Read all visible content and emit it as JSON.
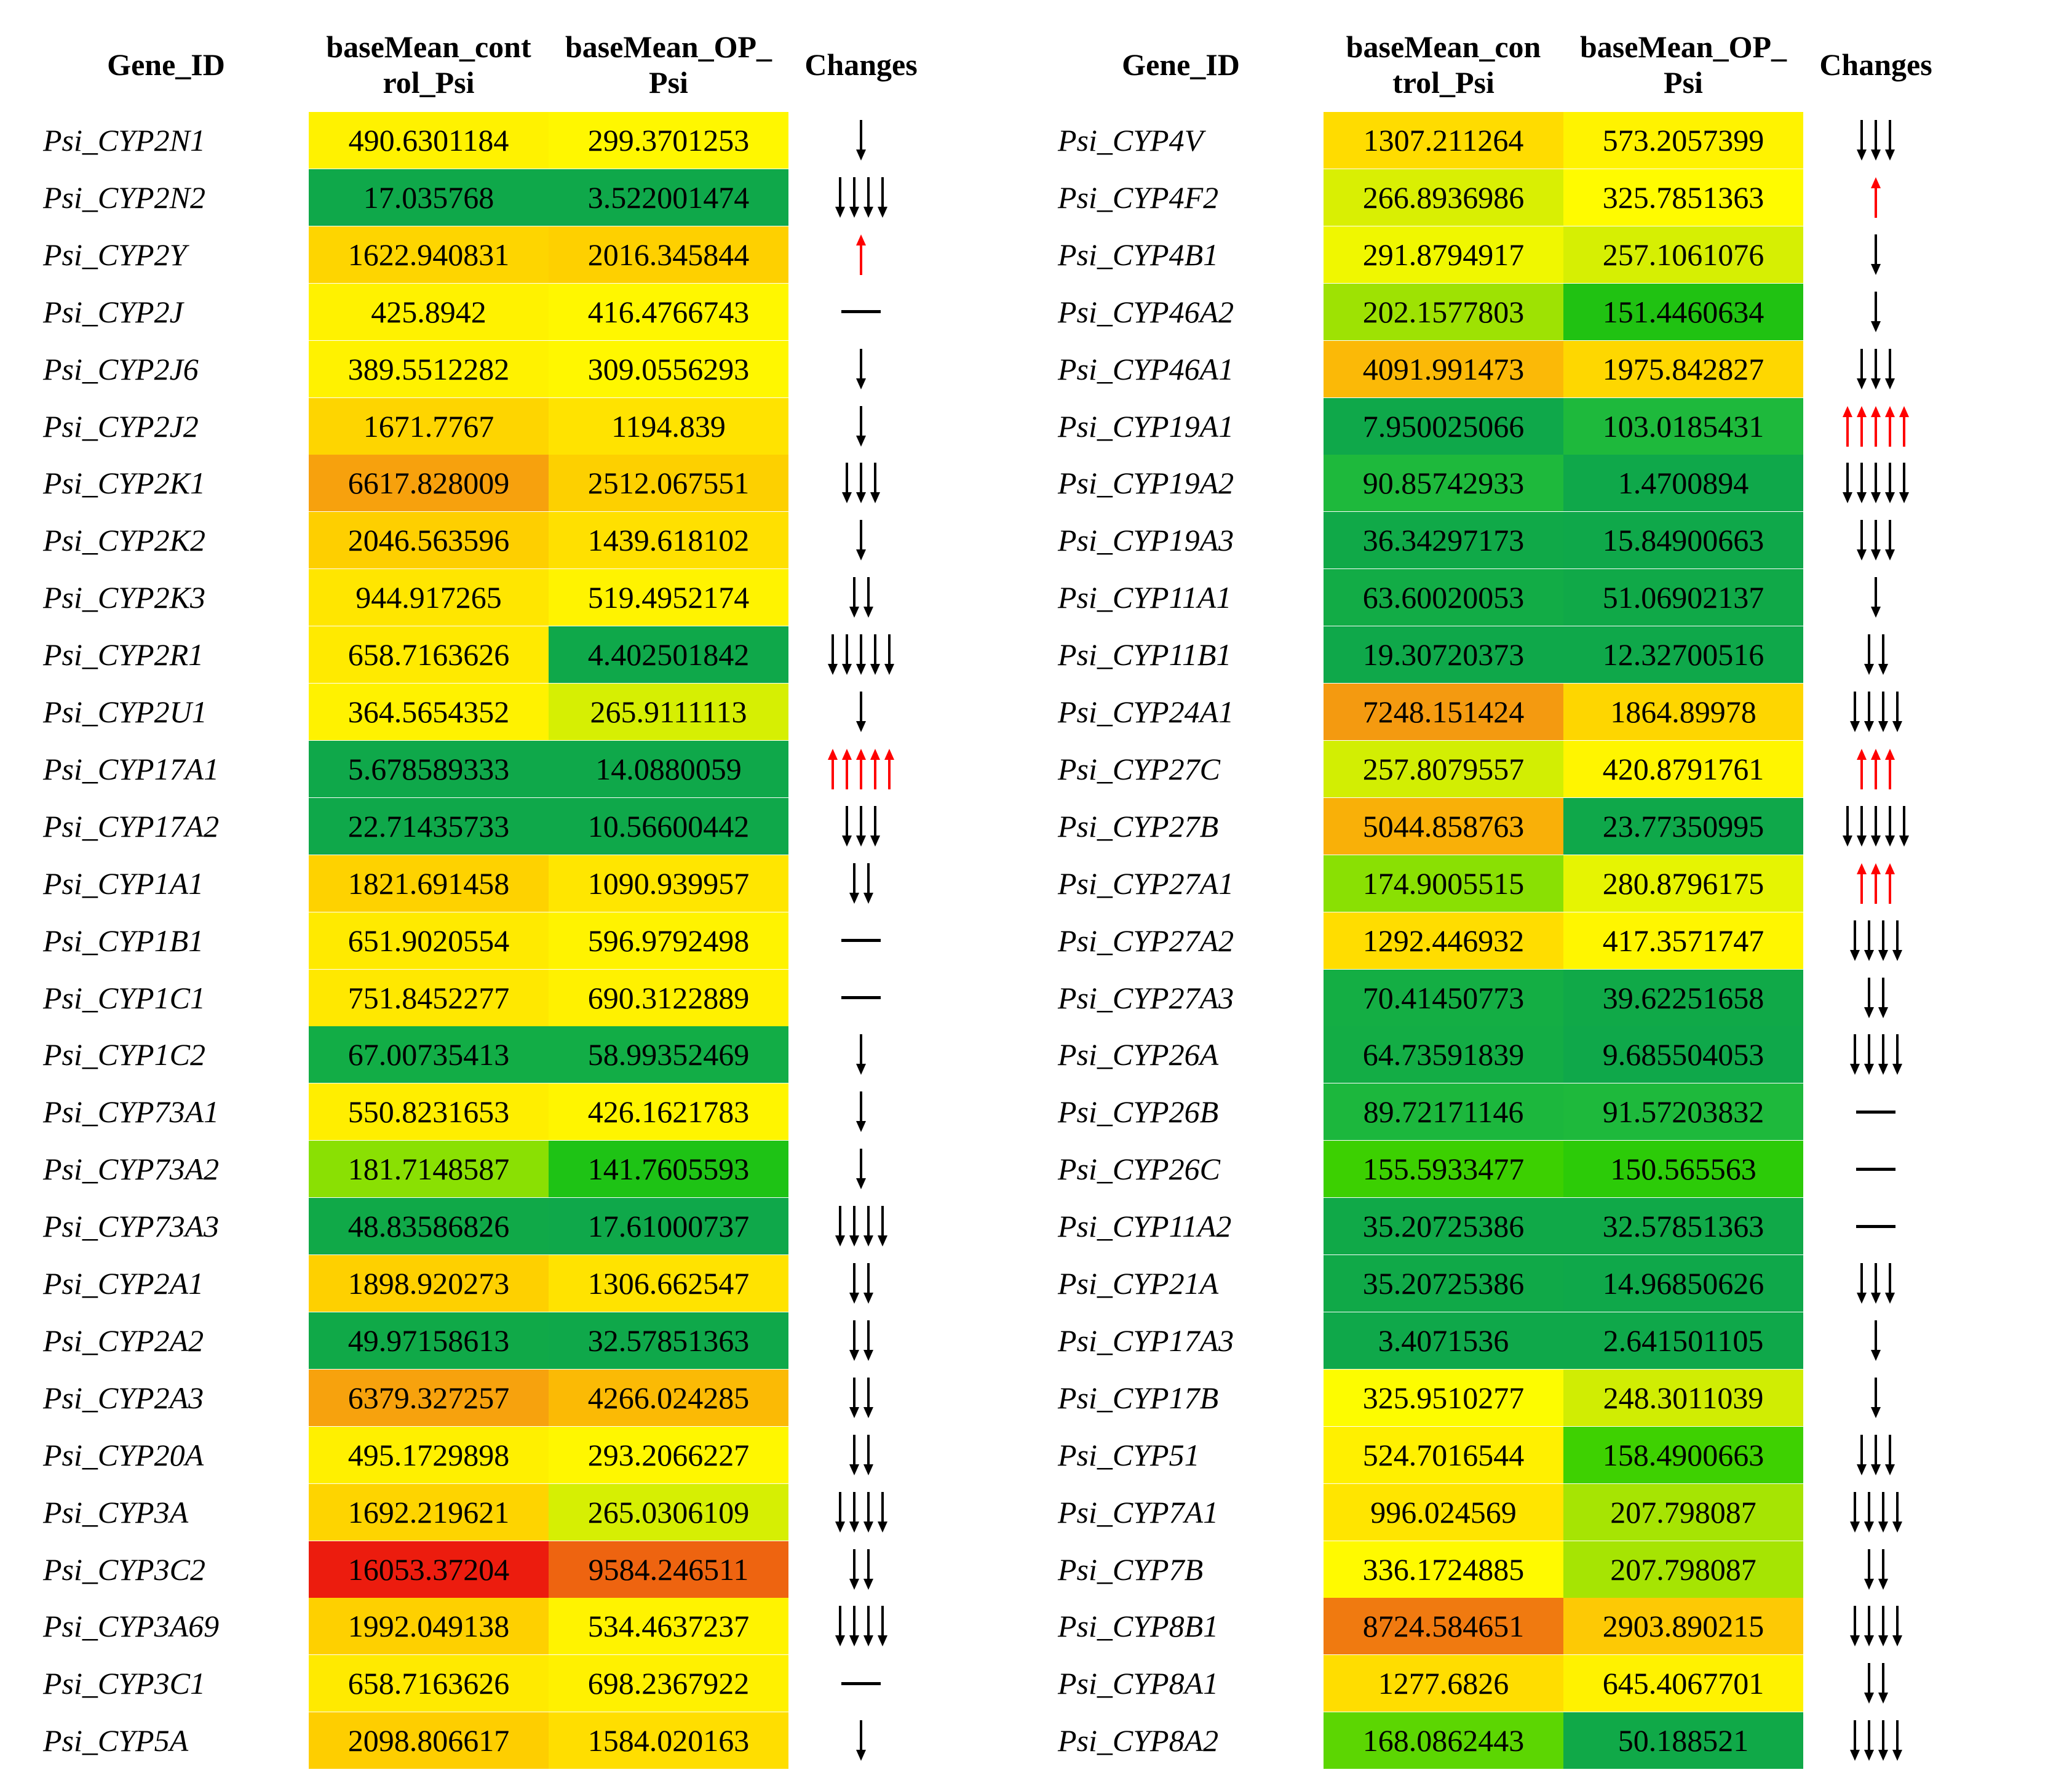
{
  "headers": {
    "gene": "Gene_ID",
    "control_left": [
      "baseMean_cont",
      "rol_Psi"
    ],
    "op_left": [
      "baseMean_OP_",
      "Psi"
    ],
    "control_right": [
      "baseMean_con",
      "trol_Psi"
    ],
    "op_right": [
      "baseMean_OP_",
      "Psi"
    ],
    "changes": "Changes"
  },
  "colors": {
    "red": "#ec1c0e",
    "orange_red": "#ee5b10",
    "orange": "#f7a10d",
    "orange_yellow": "#fdcb05",
    "yellow": "#ffe800",
    "pale_yellow": "#fffd00",
    "yellow_green": "#d6ef03",
    "light_green": "#8ae003",
    "green": "#3cd001",
    "mid_green": "#1eb93c",
    "dark_green": "#0fa84a",
    "arrow_up": "#ff0000",
    "arrow_down": "#000000"
  },
  "left_rows": [
    {
      "gene": "Psi_CYP2N1",
      "control": "490.6301184",
      "op": "299.3701253",
      "control_color": "#fff200",
      "op_color": "#fff700",
      "change": {
        "dir": "down",
        "count": 1
      }
    },
    {
      "gene": "Psi_CYP2N2",
      "control": "17.035768",
      "op": "3.522001474",
      "control_color": "#0fa84a",
      "op_color": "#0fa84a",
      "change": {
        "dir": "down",
        "count": 4
      }
    },
    {
      "gene": "Psi_CYP2Y",
      "control": "1622.940831",
      "op": "2016.345844",
      "control_color": "#fed500",
      "op_color": "#fed000",
      "change": {
        "dir": "up",
        "count": 1
      }
    },
    {
      "gene": "Psi_CYP2J",
      "control": "425.8942",
      "op": "416.4766743",
      "control_color": "#fff200",
      "op_color": "#fff700",
      "change": {
        "dir": "none",
        "count": 0
      }
    },
    {
      "gene": "Psi_CYP2J6",
      "control": "389.5512282",
      "op": "309.0556293",
      "control_color": "#fff200",
      "op_color": "#fff700",
      "change": {
        "dir": "down",
        "count": 1
      }
    },
    {
      "gene": "Psi_CYP2J2",
      "control": "1671.7767",
      "op": "1194.839",
      "control_color": "#fed500",
      "op_color": "#ffe300",
      "change": {
        "dir": "down",
        "count": 1
      }
    },
    {
      "gene": "Psi_CYP2K1",
      "control": "6617.828009",
      "op": "2512.067551",
      "control_color": "#f7a10d",
      "op_color": "#fdd000",
      "change": {
        "dir": "down",
        "count": 3
      }
    },
    {
      "gene": "Psi_CYP2K2",
      "control": "2046.563596",
      "op": "1439.618102",
      "control_color": "#fecf00",
      "op_color": "#ffe000",
      "change": {
        "dir": "down",
        "count": 1
      }
    },
    {
      "gene": "Psi_CYP2K3",
      "control": "944.917265",
      "op": "519.4952174",
      "control_color": "#ffe600",
      "op_color": "#fff300",
      "change": {
        "dir": "down",
        "count": 2
      }
    },
    {
      "gene": "Psi_CYP2R1",
      "control": "658.7163626",
      "op": "4.402501842",
      "control_color": "#ffea00",
      "op_color": "#0fa84a",
      "change": {
        "dir": "down",
        "count": 5
      }
    },
    {
      "gene": "Psi_CYP2U1",
      "control": "364.5654352",
      "op": "265.9111113",
      "control_color": "#fff200",
      "op_color": "#d6ef03",
      "change": {
        "dir": "down",
        "count": 1
      }
    },
    {
      "gene": "Psi_CYP17A1",
      "control": "5.678589333",
      "op": "14.0880059",
      "control_color": "#0fa84a",
      "op_color": "#0fa84a",
      "change": {
        "dir": "up",
        "count": 5
      }
    },
    {
      "gene": "Psi_CYP17A2",
      "control": "22.71435733",
      "op": "10.56600442",
      "control_color": "#0fa84a",
      "op_color": "#0fa84a",
      "change": {
        "dir": "down",
        "count": 3
      }
    },
    {
      "gene": "Psi_CYP1A1",
      "control": "1821.691458",
      "op": "1090.939957",
      "control_color": "#fed200",
      "op_color": "#ffe600",
      "change": {
        "dir": "down",
        "count": 2
      }
    },
    {
      "gene": "Psi_CYP1B1",
      "control": "651.9020554",
      "op": "596.9792498",
      "control_color": "#ffea00",
      "op_color": "#fff300",
      "change": {
        "dir": "none",
        "count": 0
      }
    },
    {
      "gene": "Psi_CYP1C1",
      "control": "751.8452277",
      "op": "690.3122889",
      "control_color": "#ffe800",
      "op_color": "#fff100",
      "change": {
        "dir": "none",
        "count": 0
      }
    },
    {
      "gene": "Psi_CYP1C2",
      "control": "67.00735413",
      "op": "58.99352469",
      "control_color": "#12ad46",
      "op_color": "#12ad46",
      "change": {
        "dir": "down",
        "count": 1
      }
    },
    {
      "gene": "Psi_CYP73A1",
      "control": "550.8231653",
      "op": "426.1621783",
      "control_color": "#ffee00",
      "op_color": "#fff500",
      "change": {
        "dir": "down",
        "count": 1
      }
    },
    {
      "gene": "Psi_CYP73A2",
      "control": "181.7148587",
      "op": "141.7605593",
      "control_color": "#8ae003",
      "op_color": "#1ec315",
      "change": {
        "dir": "down",
        "count": 1
      }
    },
    {
      "gene": "Psi_CYP73A3",
      "control": "48.83586826",
      "op": "17.61000737",
      "control_color": "#10a948",
      "op_color": "#0fa84a",
      "change": {
        "dir": "down",
        "count": 4
      }
    },
    {
      "gene": "Psi_CYP2A1",
      "control": "1898.920273",
      "op": "1306.662547",
      "control_color": "#fed000",
      "op_color": "#ffe300",
      "change": {
        "dir": "down",
        "count": 2
      }
    },
    {
      "gene": "Psi_CYP2A2",
      "control": "49.97158613",
      "op": "32.57851363",
      "control_color": "#10a948",
      "op_color": "#0fa84a",
      "change": {
        "dir": "down",
        "count": 2
      }
    },
    {
      "gene": "Psi_CYP2A3",
      "control": "6379.327257",
      "op": "4266.024285",
      "control_color": "#f7a20d",
      "op_color": "#fbba05",
      "change": {
        "dir": "down",
        "count": 2
      }
    },
    {
      "gene": "Psi_CYP20A",
      "control": "495.1729898",
      "op": "293.2066227",
      "control_color": "#fff000",
      "op_color": "#fff700",
      "change": {
        "dir": "down",
        "count": 2
      }
    },
    {
      "gene": "Psi_CYP3A",
      "control": "1692.219621",
      "op": "265.0306109",
      "control_color": "#fed400",
      "op_color": "#d6ef03",
      "change": {
        "dir": "down",
        "count": 4
      }
    },
    {
      "gene": "Psi_CYP3C2",
      "control": "16053.37204",
      "op": "9584.246511",
      "control_color": "#ec1c0e",
      "op_color": "#ee6410",
      "change": {
        "dir": "down",
        "count": 2
      }
    },
    {
      "gene": "Psi_CYP3A69",
      "control": "1992.049138",
      "op": "534.4637237",
      "control_color": "#fed000",
      "op_color": "#fff300",
      "change": {
        "dir": "down",
        "count": 4
      }
    },
    {
      "gene": "Psi_CYP3C1",
      "control": "658.7163626",
      "op": "698.2367922",
      "control_color": "#ffea00",
      "op_color": "#fff100",
      "change": {
        "dir": "none",
        "count": 0
      }
    },
    {
      "gene": "Psi_CYP5A",
      "control": "2098.806617",
      "op": "1584.020163",
      "control_color": "#fece00",
      "op_color": "#ffde00",
      "change": {
        "dir": "down",
        "count": 1
      }
    }
  ],
  "right_rows": [
    {
      "gene": "Psi_CYP4V",
      "control": "1307.211264",
      "op": "573.2057399",
      "control_color": "#ffdc00",
      "op_color": "#fff300",
      "change": {
        "dir": "down",
        "count": 3
      }
    },
    {
      "gene": "Psi_CYP4F2",
      "control": "266.8936986",
      "op": "325.7851363",
      "control_color": "#d9ef03",
      "op_color": "#fffb00",
      "change": {
        "dir": "up",
        "count": 1
      }
    },
    {
      "gene": "Psi_CYP4B1",
      "control": "291.8794917",
      "op": "257.1061076",
      "control_color": "#f0f700",
      "op_color": "#d6ef03",
      "change": {
        "dir": "down",
        "count": 1
      }
    },
    {
      "gene": "Psi_CYP46A2",
      "control": "202.1577803",
      "op": "151.4460634",
      "control_color": "#9ee203",
      "op_color": "#20c212",
      "change": {
        "dir": "down",
        "count": 1
      }
    },
    {
      "gene": "Psi_CYP46A1",
      "control": "4091.991473",
      "op": "1975.842827",
      "control_color": "#fbb907",
      "op_color": "#fed700",
      "change": {
        "dir": "down",
        "count": 3
      }
    },
    {
      "gene": "Psi_CYP19A1",
      "control": "7.950025066",
      "op": "103.0185431",
      "control_color": "#0fa84a",
      "op_color": "#1eb93c",
      "change": {
        "dir": "up",
        "count": 5
      }
    },
    {
      "gene": "Psi_CYP19A2",
      "control": "90.85742933",
      "op": "1.4700894",
      "control_color": "#1eb93c",
      "op_color": "#0fa84a",
      "change": {
        "dir": "down",
        "count": 5
      }
    },
    {
      "gene": "Psi_CYP19A3",
      "control": "36.34297173",
      "op": "15.84900663",
      "control_color": "#10a948",
      "op_color": "#0fa84a",
      "change": {
        "dir": "down",
        "count": 3
      }
    },
    {
      "gene": "Psi_CYP11A1",
      "control": "63.60020053",
      "op": "51.06902137",
      "control_color": "#12ac46",
      "op_color": "#10a948",
      "change": {
        "dir": "down",
        "count": 1
      }
    },
    {
      "gene": "Psi_CYP11B1",
      "control": "19.30720373",
      "op": "12.32700516",
      "control_color": "#0fa84a",
      "op_color": "#0fa84a",
      "change": {
        "dir": "down",
        "count": 2
      }
    },
    {
      "gene": "Psi_CYP24A1",
      "control": "7248.151424",
      "op": "1864.89978",
      "control_color": "#f49a10",
      "op_color": "#fed600",
      "change": {
        "dir": "down",
        "count": 4
      }
    },
    {
      "gene": "Psi_CYP27C",
      "control": "257.8079557",
      "op": "420.8791761",
      "control_color": "#d2ee03",
      "op_color": "#fff500",
      "change": {
        "dir": "up",
        "count": 3
      }
    },
    {
      "gene": "Psi_CYP27B",
      "control": "5044.858763",
      "op": "23.77350995",
      "control_color": "#f9b008",
      "op_color": "#0fa84a",
      "change": {
        "dir": "down",
        "count": 5
      }
    },
    {
      "gene": "Psi_CYP27A1",
      "control": "174.9005515",
      "op": "280.8796175",
      "control_color": "#8ae003",
      "op_color": "#e6f402",
      "change": {
        "dir": "up",
        "count": 3
      }
    },
    {
      "gene": "Psi_CYP27A2",
      "control": "1292.446932",
      "op": "417.3571747",
      "control_color": "#ffdd00",
      "op_color": "#fff600",
      "change": {
        "dir": "down",
        "count": 4
      }
    },
    {
      "gene": "Psi_CYP27A3",
      "control": "70.41450773",
      "op": "39.62251658",
      "control_color": "#14ae44",
      "op_color": "#10a948",
      "change": {
        "dir": "down",
        "count": 2
      }
    },
    {
      "gene": "Psi_CYP26A",
      "control": "64.73591839",
      "op": "9.685504053",
      "control_color": "#13ad45",
      "op_color": "#0fa84a",
      "change": {
        "dir": "down",
        "count": 4
      }
    },
    {
      "gene": "Psi_CYP26B",
      "control": "89.72171146",
      "op": "91.57203832",
      "control_color": "#1cb73d",
      "op_color": "#1eb93c",
      "change": {
        "dir": "none",
        "count": 0
      }
    },
    {
      "gene": "Psi_CYP26C",
      "control": "155.5933477",
      "op": "150.565563",
      "control_color": "#3cd001",
      "op_color": "#2ccb08",
      "change": {
        "dir": "none",
        "count": 0
      }
    },
    {
      "gene": "Psi_CYP11A2",
      "control": "35.20725386",
      "op": "32.57851363",
      "control_color": "#10a948",
      "op_color": "#10a948",
      "change": {
        "dir": "none",
        "count": 0
      }
    },
    {
      "gene": "Psi_CYP21A",
      "control": "35.20725386",
      "op": "14.96850626",
      "control_color": "#10a948",
      "op_color": "#0fa84a",
      "change": {
        "dir": "down",
        "count": 3
      }
    },
    {
      "gene": "Psi_CYP17A3",
      "control": "3.4071536",
      "op": "2.641501105",
      "control_color": "#0fa84a",
      "op_color": "#0fa84a",
      "change": {
        "dir": "down",
        "count": 1
      }
    },
    {
      "gene": "Psi_CYP17B",
      "control": "325.9510277",
      "op": "248.3011039",
      "control_color": "#fdfc00",
      "op_color": "#d0ed03",
      "change": {
        "dir": "down",
        "count": 1
      }
    },
    {
      "gene": "Psi_CYP51",
      "control": "524.7016544",
      "op": "158.4900663",
      "control_color": "#fff000",
      "op_color": "#3ed101",
      "change": {
        "dir": "down",
        "count": 3
      }
    },
    {
      "gene": "Psi_CYP7A1",
      "control": "996.024569",
      "op": "207.798087",
      "control_color": "#ffe500",
      "op_color": "#a6e403",
      "change": {
        "dir": "down",
        "count": 4
      }
    },
    {
      "gene": "Psi_CYP7B",
      "control": "336.1724885",
      "op": "207.798087",
      "control_color": "#fffa00",
      "op_color": "#a6e403",
      "change": {
        "dir": "down",
        "count": 2
      }
    },
    {
      "gene": "Psi_CYP8B1",
      "control": "8724.584651",
      "op": "2903.890215",
      "control_color": "#f07a10",
      "op_color": "#fdc905",
      "change": {
        "dir": "down",
        "count": 4
      }
    },
    {
      "gene": "Psi_CYP8A1",
      "control": "1277.6826",
      "op": "645.4067701",
      "control_color": "#ffdd00",
      "op_color": "#fff200",
      "change": {
        "dir": "down",
        "count": 2
      }
    },
    {
      "gene": "Psi_CYP8A2",
      "control": "168.0862443",
      "op": "50.188521",
      "control_color": "#5cd602",
      "op_color": "#10a948",
      "change": {
        "dir": "down",
        "count": 4
      }
    }
  ]
}
